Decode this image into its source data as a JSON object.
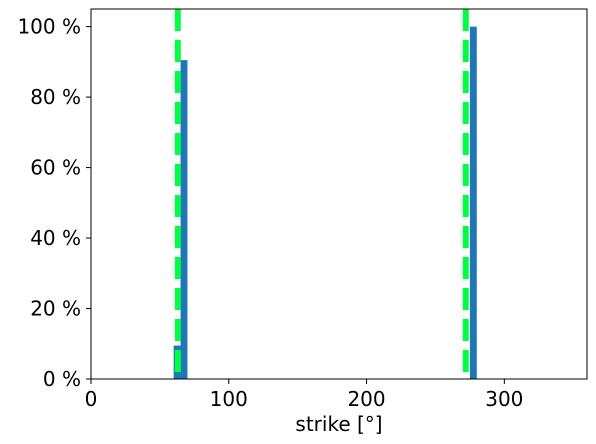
{
  "chart_data": {
    "type": "bar",
    "title": "",
    "xlabel": "strike [°]",
    "ylabel": "",
    "xlim": [
      0,
      360
    ],
    "ylim": [
      0,
      105
    ],
    "x_ticks": [
      0,
      100,
      200,
      300
    ],
    "y_ticks": [
      0,
      20,
      40,
      60,
      80,
      100
    ],
    "y_tick_suffix": " %",
    "bin_width": 5,
    "bars": [
      {
        "x_start": 60,
        "x_end": 65,
        "value": 9.5
      },
      {
        "x_start": 65,
        "x_end": 70,
        "value": 90.5
      },
      {
        "x_start": 275,
        "x_end": 280,
        "value": 100
      }
    ],
    "reference_lines": [
      {
        "x": 63,
        "style": "dashed"
      },
      {
        "x": 272,
        "style": "dashed"
      }
    ],
    "grid": false,
    "bar_color": "#1f77b4",
    "line_color": "#00ff44"
  }
}
